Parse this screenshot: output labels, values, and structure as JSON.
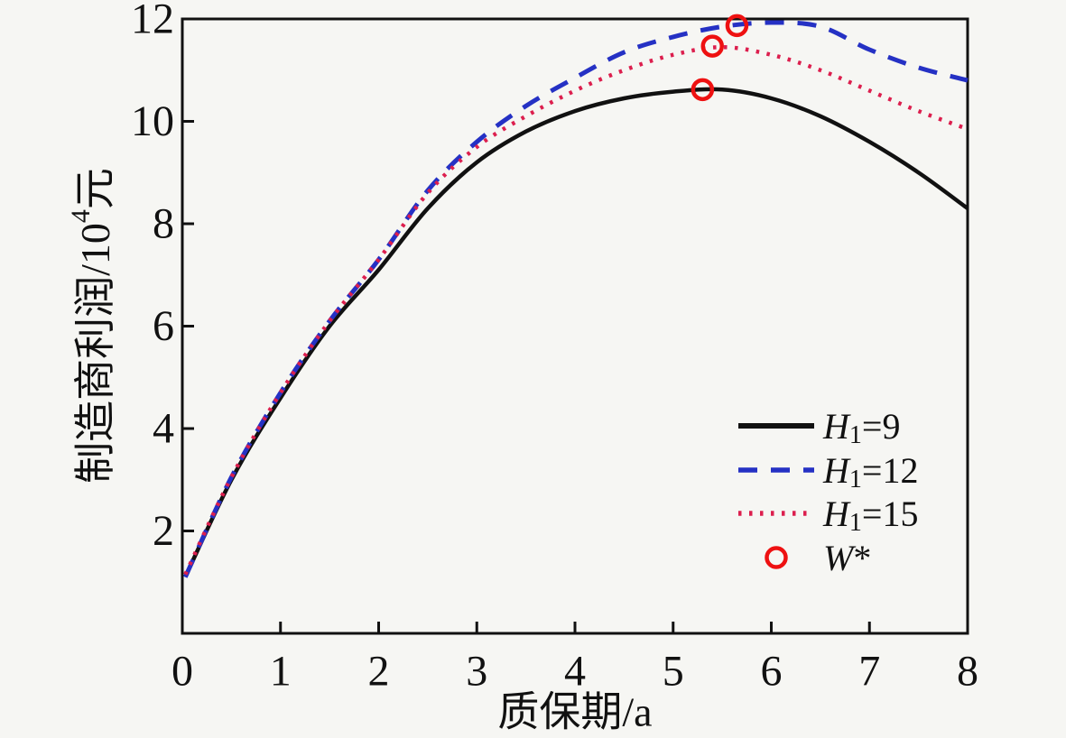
{
  "chart_data": {
    "type": "line",
    "title": "",
    "xlabel": "质保期/a",
    "ylabel": "制造商利润/10⁴元",
    "ylabel_parts": {
      "pre": "制造商利润/10",
      "sup": "4",
      "post": "元"
    },
    "xlim": [
      0,
      8
    ],
    "ylim": [
      0,
      12
    ],
    "x_ticks": [
      0,
      1,
      2,
      3,
      4,
      5,
      6,
      7,
      8
    ],
    "y_ticks": [
      2,
      4,
      6,
      8,
      10,
      12
    ],
    "grid": false,
    "frame": "box",
    "legend_position": "inside-lower-right",
    "x": [
      0.03,
      0.5,
      1,
      1.5,
      2,
      2.5,
      3,
      3.5,
      4,
      4.5,
      5,
      5.5,
      6,
      6.5,
      7,
      7.5,
      8
    ],
    "series": [
      {
        "name": "H1=9",
        "label_parts": {
          "var": "H",
          "sub": "1",
          "eq": "=9"
        },
        "color": "#111111",
        "style": "solid",
        "values": [
          1.1,
          3.0,
          4.6,
          6.0,
          7.1,
          8.3,
          9.2,
          9.8,
          10.2,
          10.45,
          10.58,
          10.62,
          10.45,
          10.1,
          9.6,
          9.0,
          8.3
        ]
      },
      {
        "name": "H1=12",
        "label_parts": {
          "var": "H",
          "sub": "1",
          "eq": "=12"
        },
        "color": "#2531c4",
        "style": "dashed",
        "values": [
          1.1,
          3.05,
          4.7,
          6.1,
          7.3,
          8.65,
          9.6,
          10.3,
          10.85,
          11.35,
          11.65,
          11.85,
          11.93,
          11.85,
          11.4,
          11.05,
          10.8
        ]
      },
      {
        "name": "H1=15",
        "label_parts": {
          "var": "H",
          "sub": "1",
          "eq": "=15"
        },
        "color": "#dc1f4e",
        "style": "dotted",
        "values": [
          1.15,
          3.05,
          4.7,
          6.1,
          7.3,
          8.6,
          9.5,
          10.1,
          10.6,
          11.0,
          11.3,
          11.45,
          11.3,
          11.0,
          10.6,
          10.2,
          9.85
        ]
      }
    ],
    "optimum_markers": {
      "name": "W*",
      "label_parts": {
        "var": "W",
        "eq": "*"
      },
      "color": "#ee1111",
      "points": [
        {
          "series": "H1=9",
          "x": 5.3,
          "y": 10.62
        },
        {
          "series": "H1=15",
          "x": 5.4,
          "y": 11.47
        },
        {
          "series": "H1=12",
          "x": 5.65,
          "y": 11.87
        }
      ]
    }
  },
  "colors": {
    "background": "#f6f6f3",
    "axis": "#111111"
  }
}
